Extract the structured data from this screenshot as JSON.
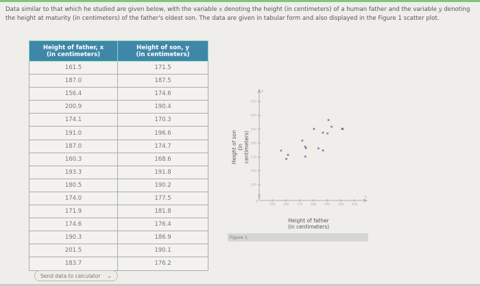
{
  "intro": {
    "part1": "Data similar to that which he studied are given below, with the variable ",
    "var_x": "x",
    "part2": " denoting the height (in centimeters) of a human father and the variable ",
    "var_y": "y",
    "part3": " denoting the height at maturity (in centimeters) of the father's oldest son. The data are given in tabular form and also displayed in the Figure 1 scatter plot."
  },
  "table": {
    "headers": [
      {
        "line1": "Height of father, x",
        "line2": "(in centimeters)"
      },
      {
        "line1": "Height of son, y",
        "line2": "(in centimeters)"
      }
    ],
    "rows": [
      [
        "161.5",
        "171.5"
      ],
      [
        "187.0",
        "187.5"
      ],
      [
        "156.4",
        "174.6"
      ],
      [
        "200.9",
        "190.4"
      ],
      [
        "174.1",
        "170.3"
      ],
      [
        "191.0",
        "196.6"
      ],
      [
        "187.0",
        "174.7"
      ],
      [
        "160.3",
        "168.6"
      ],
      [
        "193.3",
        "191.8"
      ],
      [
        "180.5",
        "190.2"
      ],
      [
        "174.0",
        "177.5"
      ],
      [
        "171.9",
        "181.8"
      ],
      [
        "174.6",
        "176.4"
      ],
      [
        "190.3",
        "186.9"
      ],
      [
        "201.5",
        "190.1"
      ],
      [
        "183.7",
        "176.2"
      ]
    ]
  },
  "calc_button": {
    "label": "Send data to calculator",
    "icon": "chevron-down-icon"
  },
  "figure": {
    "caption": "Figure 1",
    "ylabel_line1": "Height of son",
    "ylabel_line2": "(in centimeters)",
    "xlabel_line1": "Height of father",
    "xlabel_line2": "(in centimeters)"
  },
  "chart_data": {
    "type": "scatter",
    "title": "Figure 1",
    "xlabel": "Height of father (in centimeters)",
    "ylabel": "Height of son (in centimeters)",
    "x_ticks": [
      150,
      160,
      170,
      180,
      190,
      200,
      210
    ],
    "y_ticks": [
      150,
      160,
      170,
      180,
      190,
      200,
      210
    ],
    "xlim": [
      140,
      220
    ],
    "ylim": [
      140,
      215
    ],
    "x": [
      161.5,
      187.0,
      156.4,
      200.9,
      174.1,
      191.0,
      187.0,
      160.3,
      193.3,
      180.5,
      174.0,
      171.9,
      174.6,
      190.3,
      201.5,
      183.7
    ],
    "y": [
      171.5,
      187.5,
      174.6,
      190.4,
      170.3,
      196.6,
      174.7,
      168.6,
      191.8,
      190.2,
      177.5,
      181.8,
      176.4,
      186.9,
      190.1,
      176.2
    ],
    "grid": false
  }
}
